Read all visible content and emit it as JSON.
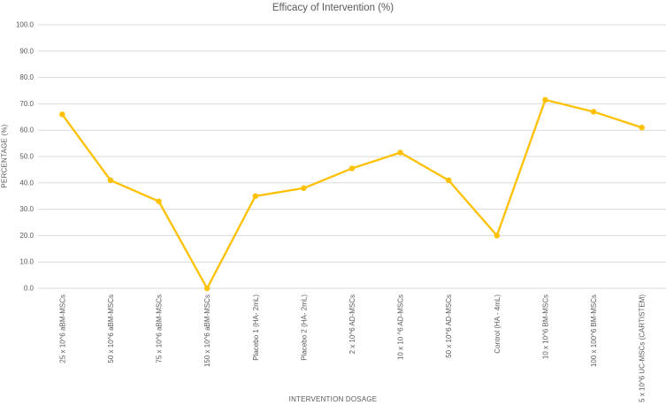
{
  "chart_data": {
    "type": "line",
    "title": "Efficacy of Intervention (%)",
    "xlabel": "INTERVENTION DOSAGE",
    "ylabel": "PERCENTAGE (%)",
    "categories": [
      "25 x 10^6 aBM-MSCs",
      "50 x 10^6 aBM-MSCs",
      "75 x 10^6 aBM-MSCs",
      "150 x 10^6 aBM-MSCs",
      "Placebo 1 (HA- 2mL)",
      "Placebo 2 (HA- 2mL)",
      "2 x 10^6 AD-MSCs",
      "10 x 10 ^6 AD-MSCs",
      "50 x 10^6 AD-MSCs",
      "Control (HA - 4mL)",
      "10 x 10^6 BM-MSCs",
      "100 x 100^6 BM-MSCs",
      "5 x 10^6 UC-MSCs (CARTISTEM)"
    ],
    "values": [
      66,
      41,
      33,
      0,
      35,
      38,
      45.5,
      51.5,
      41,
      20,
      71.5,
      67,
      61
    ],
    "ylim": [
      0,
      100
    ],
    "yticks": [
      0,
      10,
      20,
      30,
      40,
      50,
      60,
      70,
      80,
      90,
      100
    ],
    "ytick_labels": [
      "0.0",
      "10.0",
      "20.0",
      "30.0",
      "40.0",
      "50.0",
      "60.0",
      "70.0",
      "80.0",
      "90.0",
      "100.0"
    ],
    "grid": true,
    "legend": false,
    "series_color": "#FFC000"
  },
  "colors": {
    "series": "#FFC000",
    "grid": "#D9D9D9",
    "text": "#595959",
    "background": "#FFFFFF"
  }
}
